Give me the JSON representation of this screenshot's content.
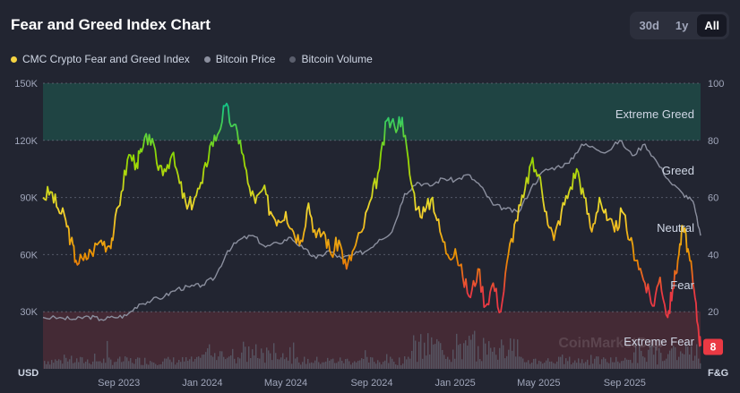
{
  "header": {
    "title": "Fear and Greed Index Chart",
    "ranges": [
      "30d",
      "1y",
      "All"
    ],
    "active_range": "All"
  },
  "legend": [
    {
      "label": "CMC Crypto Fear and Greed Index",
      "color": "#f5d442"
    },
    {
      "label": "Bitcoin Price",
      "color": "#8b8f9e"
    },
    {
      "label": "Bitcoin Volume",
      "color": "#5b5f6d"
    }
  ],
  "colors": {
    "extreme_greed_zone": "#1e4a46",
    "extreme_fear_zone": "#4a2c36",
    "price_line": "#8b8f9e",
    "volume": "#5b5f6d",
    "badge": "#ea3943"
  },
  "watermark": "CoinMarketCap",
  "current_score": "8",
  "chart_data": {
    "type": "line",
    "title": "Fear and Greed Index Chart",
    "left_axis": {
      "label": "USD",
      "ticks": [
        "30K",
        "60K",
        "90K",
        "120K",
        "150K"
      ],
      "tick_values": [
        30000,
        60000,
        90000,
        120000,
        150000
      ],
      "range": [
        0,
        150000
      ]
    },
    "right_axis": {
      "label": "F&G",
      "ticks": [
        "20",
        "40",
        "60",
        "80",
        "100"
      ],
      "tick_values": [
        20,
        40,
        60,
        80,
        100
      ],
      "range": [
        0,
        100
      ]
    },
    "x_axis": {
      "ticks": [
        "Sep 2023",
        "Jan 2024",
        "May 2024",
        "Sep 2024",
        "Jan 2025",
        "May 2025",
        "Sep 2025"
      ],
      "tick_times": [
        2023.67,
        2024.0,
        2024.33,
        2024.67,
        2025.0,
        2025.33,
        2025.67
      ],
      "range": [
        2023.37,
        2025.97
      ]
    },
    "zones": [
      {
        "label": "Extreme Greed",
        "min": 80,
        "max": 100
      },
      {
        "label": "Greed",
        "min": 60,
        "max": 80
      },
      {
        "label": "Neutral",
        "min": 40,
        "max": 60
      },
      {
        "label": "Fear",
        "min": 20,
        "max": 40
      },
      {
        "label": "Extreme Fear",
        "min": 0,
        "max": 20
      }
    ],
    "series": [
      {
        "name": "CMC Crypto Fear and Greed Index",
        "axis": "right",
        "points": [
          [
            2023.37,
            60
          ],
          [
            2023.4,
            62
          ],
          [
            2023.43,
            56
          ],
          [
            2023.46,
            52
          ],
          [
            2023.48,
            45
          ],
          [
            2023.5,
            38
          ],
          [
            2023.53,
            38
          ],
          [
            2023.56,
            41
          ],
          [
            2023.6,
            45
          ],
          [
            2023.63,
            43
          ],
          [
            2023.65,
            48
          ],
          [
            2023.68,
            62
          ],
          [
            2023.71,
            75
          ],
          [
            2023.74,
            72
          ],
          [
            2023.76,
            76
          ],
          [
            2023.79,
            82
          ],
          [
            2023.82,
            72
          ],
          [
            2023.85,
            70
          ],
          [
            2023.88,
            75
          ],
          [
            2023.91,
            65
          ],
          [
            2023.94,
            56
          ],
          [
            2023.97,
            60
          ],
          [
            2024.0,
            65
          ],
          [
            2024.03,
            78
          ],
          [
            2024.06,
            82
          ],
          [
            2024.09,
            92
          ],
          [
            2024.12,
            85
          ],
          [
            2024.15,
            80
          ],
          [
            2024.18,
            65
          ],
          [
            2024.21,
            58
          ],
          [
            2024.24,
            63
          ],
          [
            2024.27,
            55
          ],
          [
            2024.3,
            52
          ],
          [
            2024.33,
            55
          ],
          [
            2024.36,
            48
          ],
          [
            2024.39,
            45
          ],
          [
            2024.42,
            58
          ],
          [
            2024.45,
            46
          ],
          [
            2024.48,
            48
          ],
          [
            2024.51,
            40
          ],
          [
            2024.54,
            45
          ],
          [
            2024.57,
            35
          ],
          [
            2024.6,
            42
          ],
          [
            2024.63,
            48
          ],
          [
            2024.67,
            60
          ],
          [
            2024.7,
            70
          ],
          [
            2024.73,
            87
          ],
          [
            2024.76,
            85
          ],
          [
            2024.79,
            88
          ],
          [
            2024.82,
            68
          ],
          [
            2024.85,
            56
          ],
          [
            2024.88,
            55
          ],
          [
            2024.91,
            60
          ],
          [
            2024.94,
            48
          ],
          [
            2024.97,
            40
          ],
          [
            2025.0,
            42
          ],
          [
            2025.03,
            32
          ],
          [
            2025.06,
            25
          ],
          [
            2025.09,
            35
          ],
          [
            2025.12,
            22
          ],
          [
            2025.15,
            30
          ],
          [
            2025.18,
            20
          ],
          [
            2025.21,
            40
          ],
          [
            2025.24,
            52
          ],
          [
            2025.27,
            60
          ],
          [
            2025.3,
            72
          ],
          [
            2025.33,
            68
          ],
          [
            2025.36,
            55
          ],
          [
            2025.39,
            45
          ],
          [
            2025.42,
            55
          ],
          [
            2025.45,
            62
          ],
          [
            2025.48,
            70
          ],
          [
            2025.51,
            60
          ],
          [
            2025.54,
            48
          ],
          [
            2025.57,
            60
          ],
          [
            2025.6,
            52
          ],
          [
            2025.63,
            48
          ],
          [
            2025.66,
            55
          ],
          [
            2025.69,
            45
          ],
          [
            2025.72,
            38
          ],
          [
            2025.75,
            30
          ],
          [
            2025.78,
            22
          ],
          [
            2025.81,
            32
          ],
          [
            2025.84,
            18
          ],
          [
            2025.86,
            28
          ],
          [
            2025.88,
            38
          ],
          [
            2025.9,
            50
          ],
          [
            2025.92,
            42
          ],
          [
            2025.94,
            30
          ],
          [
            2025.96,
            15
          ],
          [
            2025.97,
            8
          ]
        ]
      },
      {
        "name": "Bitcoin Price",
        "axis": "left",
        "points": [
          [
            2023.37,
            27000
          ],
          [
            2023.45,
            26500
          ],
          [
            2023.5,
            26000
          ],
          [
            2023.55,
            27500
          ],
          [
            2023.6,
            26000
          ],
          [
            2023.65,
            27000
          ],
          [
            2023.7,
            28000
          ],
          [
            2023.75,
            34000
          ],
          [
            2023.8,
            36000
          ],
          [
            2023.85,
            38000
          ],
          [
            2023.9,
            42000
          ],
          [
            2023.95,
            43000
          ],
          [
            2024.0,
            44000
          ],
          [
            2024.05,
            48000
          ],
          [
            2024.1,
            62000
          ],
          [
            2024.15,
            68000
          ],
          [
            2024.2,
            70000
          ],
          [
            2024.25,
            64000
          ],
          [
            2024.3,
            66000
          ],
          [
            2024.35,
            69000
          ],
          [
            2024.4,
            63000
          ],
          [
            2024.45,
            58000
          ],
          [
            2024.5,
            62000
          ],
          [
            2024.55,
            58000
          ],
          [
            2024.6,
            60000
          ],
          [
            2024.65,
            62000
          ],
          [
            2024.7,
            68000
          ],
          [
            2024.75,
            72000
          ],
          [
            2024.8,
            92000
          ],
          [
            2024.85,
            98000
          ],
          [
            2024.9,
            96000
          ],
          [
            2024.95,
            100000
          ],
          [
            2025.0,
            99000
          ],
          [
            2025.05,
            102000
          ],
          [
            2025.1,
            96000
          ],
          [
            2025.15,
            86000
          ],
          [
            2025.2,
            84000
          ],
          [
            2025.25,
            82000
          ],
          [
            2025.3,
            95000
          ],
          [
            2025.35,
            104000
          ],
          [
            2025.4,
            106000
          ],
          [
            2025.45,
            108000
          ],
          [
            2025.5,
            118000
          ],
          [
            2025.55,
            116000
          ],
          [
            2025.6,
            114000
          ],
          [
            2025.65,
            120000
          ],
          [
            2025.7,
            112000
          ],
          [
            2025.75,
            118000
          ],
          [
            2025.8,
            108000
          ],
          [
            2025.85,
            98000
          ],
          [
            2025.9,
            92000
          ],
          [
            2025.94,
            88000
          ],
          [
            2025.97,
            70000
          ]
        ]
      }
    ]
  }
}
